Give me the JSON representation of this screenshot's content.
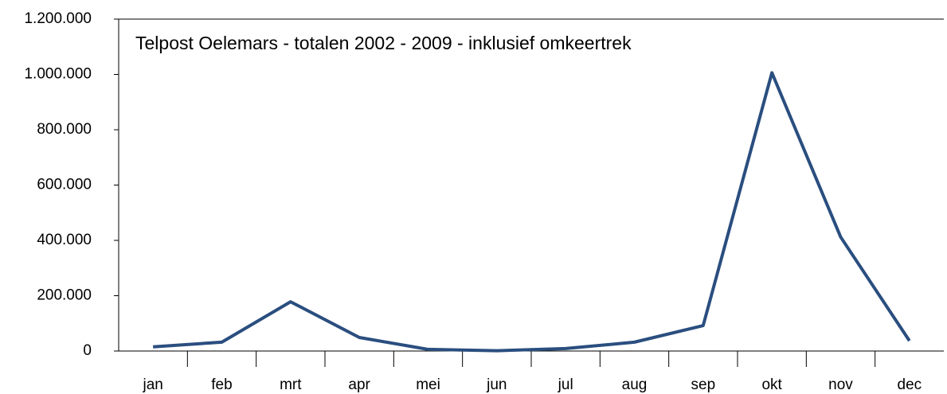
{
  "chart_data": {
    "type": "line",
    "title": "Telpost Oelemars - totalen 2002 - 2009 - inklusief omkeertrek",
    "categories": [
      "jan",
      "feb",
      "mrt",
      "apr",
      "mei",
      "jun",
      "jul",
      "aug",
      "sep",
      "okt",
      "nov",
      "dec"
    ],
    "values": [
      15000,
      32000,
      178000,
      49000,
      6000,
      1000,
      9000,
      32000,
      92000,
      1006000,
      412000,
      37000
    ],
    "color": "#2a4e7f",
    "ylim": [
      0,
      1200000
    ],
    "yticks": [
      0,
      {
        "value": 200000,
        "label": "200.000"
      },
      {
        "value": 400000,
        "label": "400.000"
      },
      {
        "value": 600000,
        "label": "600.000"
      },
      {
        "value": 800000,
        "label": "800.000"
      },
      {
        "value": 1000000,
        "label": "1.000.000"
      },
      {
        "value": 1200000,
        "label": "1.200.000"
      }
    ],
    "grid": false
  }
}
